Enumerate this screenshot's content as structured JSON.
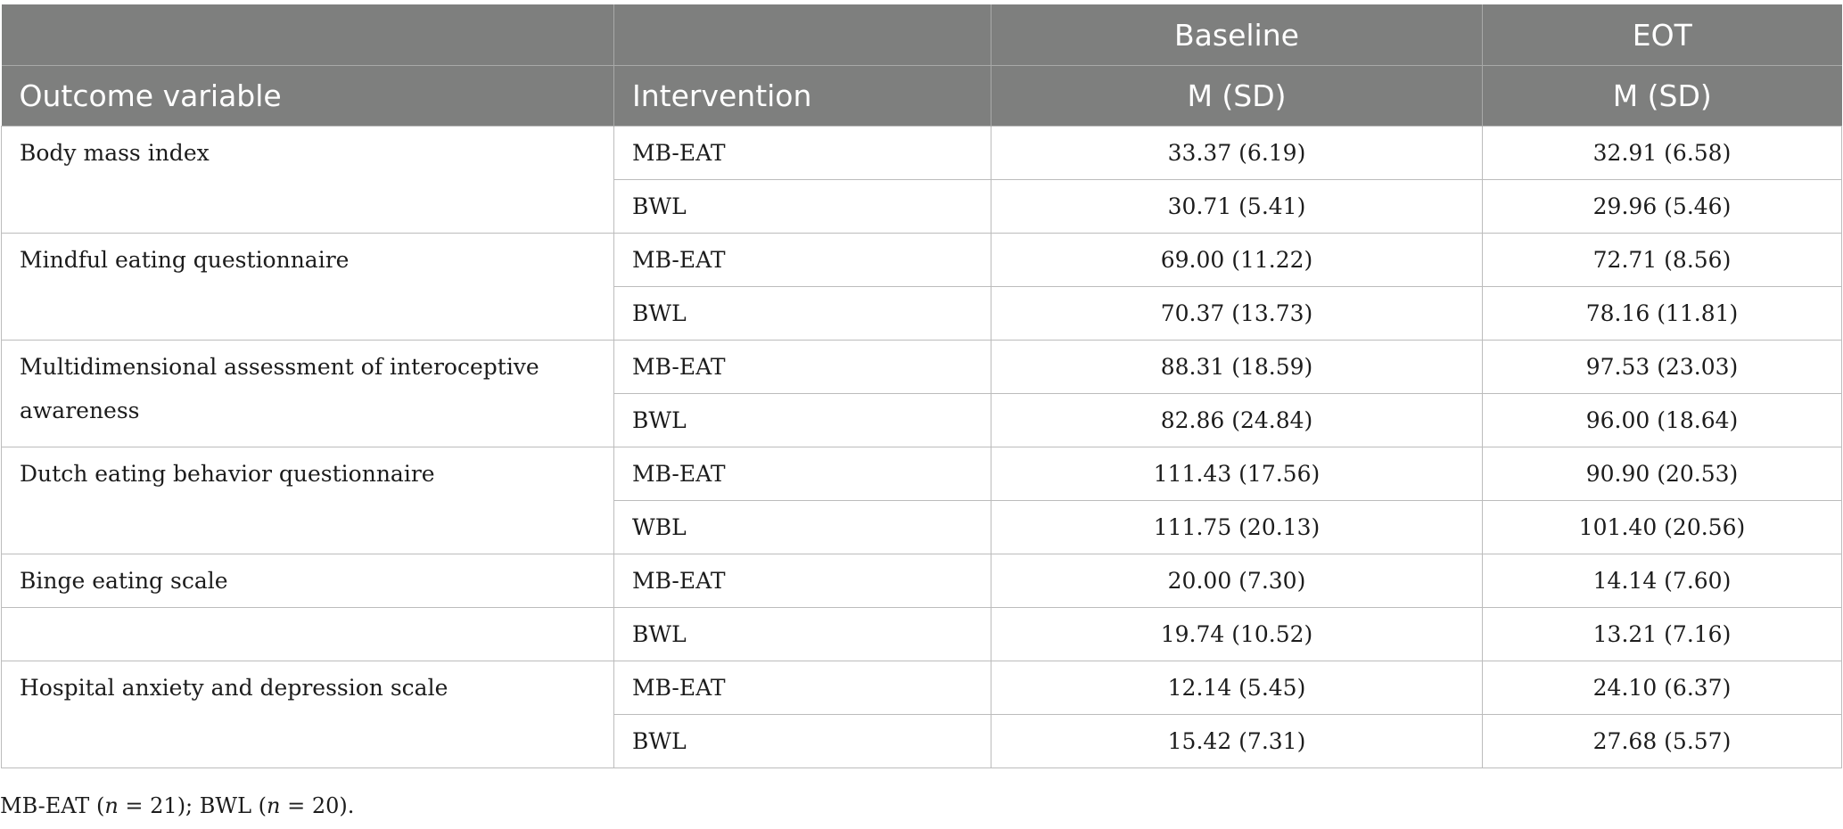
{
  "table": {
    "header_row1": {
      "col1": "",
      "col2": "",
      "col3": "Baseline",
      "col4": "EOT"
    },
    "header_row2": {
      "col1": "Outcome variable",
      "col2": "Intervention",
      "col3": "M (SD)",
      "col4": "M (SD)"
    },
    "groups": [
      {
        "outcome": "Body mass index",
        "rows": [
          {
            "intervention": "MB-EAT",
            "baseline": "33.37 (6.19)",
            "eot": "32.91 (6.58)"
          },
          {
            "intervention": "BWL",
            "baseline": "30.71 (5.41)",
            "eot": "29.96 (5.46)"
          }
        ]
      },
      {
        "outcome": "Mindful eating questionnaire",
        "rows": [
          {
            "intervention": "MB-EAT",
            "baseline": "69.00 (11.22)",
            "eot": "72.71 (8.56)"
          },
          {
            "intervention": "BWL",
            "baseline": "70.37 (13.73)",
            "eot": "78.16 (11.81)"
          }
        ]
      },
      {
        "outcome": "Multidimensional assessment of interoceptive awareness",
        "rows": [
          {
            "intervention": "MB-EAT",
            "baseline": "88.31 (18.59)",
            "eot": "97.53 (23.03)"
          },
          {
            "intervention": "BWL",
            "baseline": "82.86 (24.84)",
            "eot": "96.00 (18.64)"
          }
        ]
      },
      {
        "outcome": "Dutch eating behavior questionnaire",
        "rows": [
          {
            "intervention": "MB-EAT",
            "baseline": "111.43 (17.56)",
            "eot": "90.90 (20.53)"
          },
          {
            "intervention": "WBL",
            "baseline": "111.75 (20.13)",
            "eot": "101.40 (20.56)"
          }
        ]
      },
      {
        "outcome": "Binge eating scale",
        "rows": [
          {
            "intervention": "MB-EAT",
            "baseline": "20.00 (7.30)",
            "eot": "14.14 (7.60)"
          }
        ]
      },
      {
        "outcome": "",
        "rows": [
          {
            "intervention": "BWL",
            "baseline": "19.74 (10.52)",
            "eot": "13.21 (7.16)"
          }
        ]
      },
      {
        "outcome": "Hospital anxiety and depression scale",
        "rows": [
          {
            "intervention": "MB-EAT",
            "baseline": "12.14 (5.45)",
            "eot": "24.10 (6.37)"
          },
          {
            "intervention": "BWL",
            "baseline": "15.42 (7.31)",
            "eot": "27.68 (5.57)"
          }
        ]
      }
    ]
  },
  "footnote": {
    "a_label": "MB-EAT (",
    "a_var": "n",
    "a_value": " = 21); BWL (",
    "b_var": "n",
    "b_value": " = 20)."
  }
}
